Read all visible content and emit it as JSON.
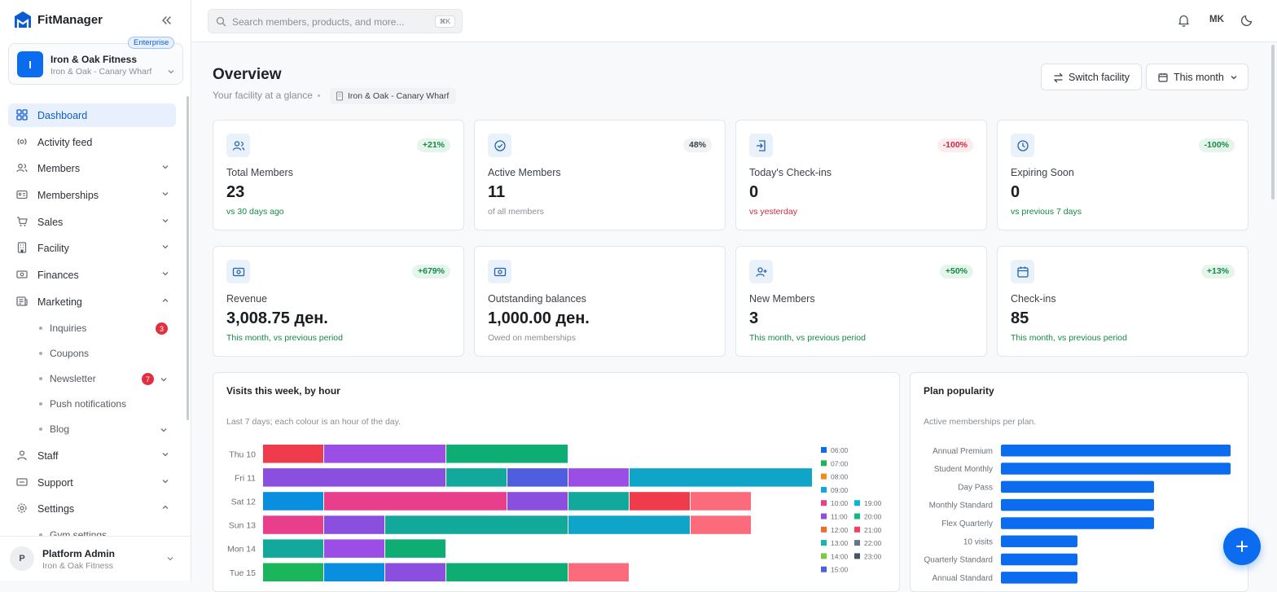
{
  "app": {
    "name": "FitManager"
  },
  "org": {
    "name": "Iron & Oak Fitness",
    "location": "Iron & Oak - Canary Wharf",
    "plan_badge": "Enterprise",
    "initial": "I"
  },
  "nav": {
    "dashboard": "Dashboard",
    "activity": "Activity feed",
    "members": "Members",
    "memberships": "Memberships",
    "sales": "Sales",
    "facility": "Facility",
    "finances": "Finances",
    "marketing": "Marketing",
    "inquiries": "Inquiries",
    "inquiries_count": "3",
    "coupons": "Coupons",
    "newsletter": "Newsletter",
    "newsletter_count": "7",
    "push": "Push notifications",
    "blog": "Blog",
    "staff": "Staff",
    "support": "Support",
    "settings": "Settings",
    "gym_settings": "Gym settings"
  },
  "user": {
    "name": "Platform Admin",
    "org": "Iron & Oak Fitness",
    "initial": "P"
  },
  "topbar": {
    "search_placeholder": "Search members, products, and more...",
    "shortcut": "⌘K",
    "user_initials": "MK"
  },
  "page": {
    "title": "Overview",
    "subtitle": "Your facility at a glance",
    "location": "Iron & Oak - Canary Wharf",
    "switch_label": "Switch facility",
    "period_label": "This month"
  },
  "stats": [
    {
      "label": "Total Members",
      "value": "23",
      "change": "+21%",
      "trend": "up",
      "foot": "vs 30 days ago",
      "foot_color": "green",
      "icon": "users-icon"
    },
    {
      "label": "Active Members",
      "value": "11",
      "change": "48%",
      "trend": "neu",
      "foot": "of all members",
      "foot_color": "gray",
      "icon": "check-circle-icon"
    },
    {
      "label": "Today's Check-ins",
      "value": "0",
      "change": "-100%",
      "trend": "down",
      "foot": "vs yesterday",
      "foot_color": "red",
      "icon": "door-icon"
    },
    {
      "label": "Expiring Soon",
      "value": "0",
      "change": "-100%",
      "trend": "up",
      "foot": "vs previous 7 days",
      "foot_color": "green",
      "icon": "clock-icon"
    },
    {
      "label": "Revenue",
      "value": "3,008.75 ден.",
      "change": "+679%",
      "trend": "up",
      "foot": "This month, vs previous period",
      "foot_color": "green",
      "icon": "money-icon"
    },
    {
      "label": "Outstanding balances",
      "value": "1,000.00 ден.",
      "change": "",
      "trend": "none",
      "foot": "Owed on memberships",
      "foot_color": "gray",
      "icon": "money-icon"
    },
    {
      "label": "New Members",
      "value": "3",
      "change": "+50%",
      "trend": "up",
      "foot": "This month, vs previous period",
      "foot_color": "green",
      "icon": "user-plus-icon"
    },
    {
      "label": "Check-ins",
      "value": "85",
      "change": "+13%",
      "trend": "up",
      "foot": "This month, vs previous period",
      "foot_color": "green",
      "icon": "calendar-icon"
    }
  ],
  "visits_panel": {
    "title": "Visits this week, by hour",
    "subtitle": "Last 7 days; each colour is an hour of the day."
  },
  "plans_panel": {
    "title": "Plan popularity",
    "subtitle": "Active memberships per plan."
  },
  "chart_data": [
    {
      "type": "bar",
      "stacked": true,
      "orientation": "horizontal",
      "categories": [
        "Thu 10",
        "Fri 11",
        "Sat 12",
        "Sun 13",
        "Mon 14",
        "Tue 15"
      ],
      "legend": [
        "06:00",
        "07:00",
        "08:00",
        "09:00",
        "10:00",
        "11:00",
        "12:00",
        "13:00",
        "14:00",
        "15:00",
        "19:00",
        "20:00",
        "21:00",
        "22:00",
        "23:00"
      ],
      "legend_colors": {
        "06:00": "#0b6cf0",
        "07:00": "#1bb55c",
        "08:00": "#f08c1a",
        "09:00": "#0ea5e0",
        "10:00": "#e83e8c",
        "11:00": "#8b4fe0",
        "12:00": "#f06a2a",
        "13:00": "#14b8a6",
        "14:00": "#7ac943",
        "15:00": "#4f5ddf",
        "19:00": "#06b6d4",
        "20:00": "#10b981",
        "21:00": "#f43f5e",
        "22:00": "#64748b",
        "23:00": "#475569"
      },
      "rows": [
        {
          "day": "Thu 10",
          "segments": [
            {
              "color": "#ef3b4b",
              "value": 1
            },
            {
              "color": "#9b4ee6",
              "value": 2
            },
            {
              "color": "#0ead74",
              "value": 2
            }
          ]
        },
        {
          "day": "Fri 11",
          "segments": [
            {
              "color": "#8b4fe0",
              "value": 3
            },
            {
              "color": "#12a89b",
              "value": 1
            },
            {
              "color": "#4f5ddf",
              "value": 1
            },
            {
              "color": "#9b4ee6",
              "value": 1
            },
            {
              "color": "#0ea5c8",
              "value": 3
            }
          ]
        },
        {
          "day": "Sat 12",
          "segments": [
            {
              "color": "#0a8fe0",
              "value": 1
            },
            {
              "color": "#e83e8c",
              "value": 3
            },
            {
              "color": "#8b4fe0",
              "value": 1
            },
            {
              "color": "#12a89b",
              "value": 1
            },
            {
              "color": "#ef3b4b",
              "value": 1
            },
            {
              "color": "#fb6b7b",
              "value": 1
            }
          ]
        },
        {
          "day": "Sun 13",
          "segments": [
            {
              "color": "#e83e8c",
              "value": 1
            },
            {
              "color": "#8b4fe0",
              "value": 1
            },
            {
              "color": "#12a89b",
              "value": 3
            },
            {
              "color": "#0ea5c8",
              "value": 2
            },
            {
              "color": "#fb6b7b",
              "value": 1
            }
          ]
        },
        {
          "day": "Mon 14",
          "segments": [
            {
              "color": "#12a89b",
              "value": 1
            },
            {
              "color": "#9b4ee6",
              "value": 1
            },
            {
              "color": "#0ead74",
              "value": 1
            }
          ]
        },
        {
          "day": "Tue 15",
          "segments": [
            {
              "color": "#1bb55c",
              "value": 1
            },
            {
              "color": "#0a8fe0",
              "value": 1
            },
            {
              "color": "#8b4fe0",
              "value": 1
            },
            {
              "color": "#0ead74",
              "value": 2
            },
            {
              "color": "#fb6b7b",
              "value": 1
            }
          ]
        }
      ]
    },
    {
      "type": "bar",
      "orientation": "horizontal",
      "categories": [
        "Annual Premium",
        "Student Monthly",
        "Day Pass",
        "Monthly Standard",
        "Flex Quarterly",
        "10 visits",
        "Quarterly Standard",
        "Annual Standard"
      ],
      "values": [
        3,
        3,
        2,
        2,
        2,
        1,
        1,
        1
      ],
      "color": "#0b6cf0"
    }
  ]
}
